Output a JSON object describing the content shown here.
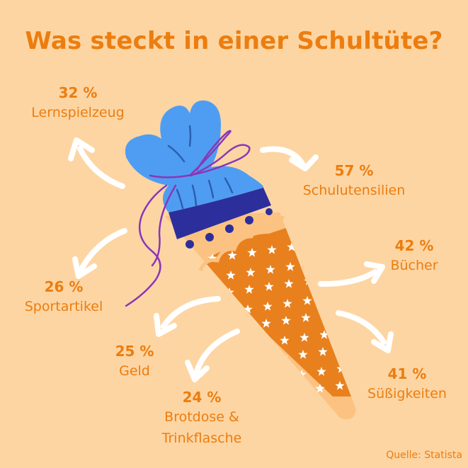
{
  "chart_data": {
    "type": "infographic",
    "title": "Was steckt in einer Schultüte?",
    "unit": "%",
    "items": [
      {
        "label": "Lernspielzeug",
        "value": 32,
        "value_text": "32 %"
      },
      {
        "label": "Schulutensilien",
        "value": 57,
        "value_text": "57 %"
      },
      {
        "label": "Bücher",
        "value": 42,
        "value_text": "42 %"
      },
      {
        "label": "Sportartikel",
        "value": 26,
        "value_text": "26 %"
      },
      {
        "label": "Süßigkeiten",
        "value": 41,
        "value_text": "41 %"
      },
      {
        "label": "Geld",
        "value": 25,
        "value_text": "25 %"
      },
      {
        "label": "Brotdose & Trinkflasche",
        "value": 24,
        "value_text": "24 %"
      }
    ],
    "source": "Quelle: Statista"
  },
  "colors": {
    "background": "#fdd5a3",
    "accent": "#ec7d0f",
    "cone_body": "#e8801e",
    "cone_tip": "#fbc281",
    "wrap_blue": "#4f9df2",
    "band_navy": "#2c2f9b",
    "ribbon_purple": "#8a36b8",
    "arrow": "#ffffff"
  }
}
